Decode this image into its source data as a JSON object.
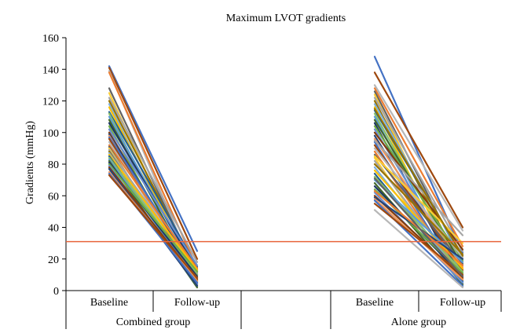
{
  "chart_data": {
    "type": "line",
    "title": "Maximum LVOT gradients",
    "ylabel": "Gradients (mmHg)",
    "xlabel": "",
    "ylim": [
      0,
      160
    ],
    "yticks": [
      0,
      20,
      40,
      60,
      80,
      100,
      120,
      140,
      160
    ],
    "grid": false,
    "categories": [
      "Baseline",
      "Follow-up",
      "Baseline",
      "Follow-up"
    ],
    "groups": [
      "Combined group",
      "Alone group"
    ],
    "reference_line": {
      "value": 31,
      "color": "#e8643a"
    },
    "palette": [
      "#4472c4",
      "#ed7d31",
      "#a5a5a5",
      "#ffc000",
      "#5b9bd5",
      "#70ad47",
      "#264478",
      "#9e480e",
      "#636363",
      "#997300",
      "#255e91",
      "#43682b",
      "#698ed0",
      "#f1975a",
      "#b7b7b7",
      "#ffcd33",
      "#7cafdd",
      "#8cc168",
      "#1f3864",
      "#833c0b"
    ],
    "combined_group": [
      [
        142,
        25
      ],
      [
        141,
        20
      ],
      [
        139,
        8
      ],
      [
        138,
        14
      ],
      [
        128,
        10
      ],
      [
        125,
        5
      ],
      [
        122,
        18
      ],
      [
        120,
        12
      ],
      [
        118,
        6
      ],
      [
        116,
        9
      ],
      [
        113,
        15
      ],
      [
        112,
        4
      ],
      [
        110,
        11
      ],
      [
        108,
        7
      ],
      [
        106,
        13
      ],
      [
        104,
        3
      ],
      [
        102,
        16
      ],
      [
        100,
        8
      ],
      [
        99,
        10
      ],
      [
        98,
        5
      ],
      [
        97,
        12
      ],
      [
        96,
        6
      ],
      [
        94,
        9
      ],
      [
        92,
        14
      ],
      [
        91,
        4
      ],
      [
        90,
        7
      ],
      [
        89,
        11
      ],
      [
        88,
        3
      ],
      [
        87,
        8
      ],
      [
        86,
        13
      ],
      [
        85,
        5
      ],
      [
        84,
        10
      ],
      [
        83,
        6
      ],
      [
        82,
        2
      ],
      [
        81,
        9
      ],
      [
        80,
        12
      ],
      [
        79,
        4
      ],
      [
        78,
        7
      ],
      [
        77,
        3
      ],
      [
        75,
        6
      ],
      [
        74,
        5
      ],
      [
        73,
        8
      ]
    ],
    "alone_group": [
      [
        148,
        24
      ],
      [
        138,
        40
      ],
      [
        130,
        38
      ],
      [
        128,
        28
      ],
      [
        126,
        18
      ],
      [
        124,
        10
      ],
      [
        122,
        25
      ],
      [
        120,
        14
      ],
      [
        118,
        20
      ],
      [
        116,
        8
      ],
      [
        114,
        22
      ],
      [
        112,
        12
      ],
      [
        110,
        6
      ],
      [
        108,
        16
      ],
      [
        106,
        4
      ],
      [
        104,
        19
      ],
      [
        102,
        11
      ],
      [
        100,
        26
      ],
      [
        98,
        9
      ],
      [
        96,
        15
      ],
      [
        94,
        5
      ],
      [
        92,
        13
      ],
      [
        90,
        21
      ],
      [
        88,
        7
      ],
      [
        86,
        17
      ],
      [
        84,
        3
      ],
      [
        82,
        10
      ],
      [
        80,
        23
      ],
      [
        78,
        8
      ],
      [
        76,
        14
      ],
      [
        74,
        6
      ],
      [
        72,
        12
      ],
      [
        70,
        18
      ],
      [
        68,
        4
      ],
      [
        66,
        9
      ],
      [
        64,
        11
      ],
      [
        62,
        5
      ],
      [
        60,
        8
      ],
      [
        59,
        20
      ],
      [
        58,
        7
      ],
      [
        57,
        3
      ],
      [
        55,
        10
      ],
      [
        51,
        2
      ],
      [
        63,
        16
      ],
      [
        71,
        9
      ],
      [
        85,
        30
      ],
      [
        95,
        35
      ],
      [
        115,
        22
      ]
    ]
  }
}
